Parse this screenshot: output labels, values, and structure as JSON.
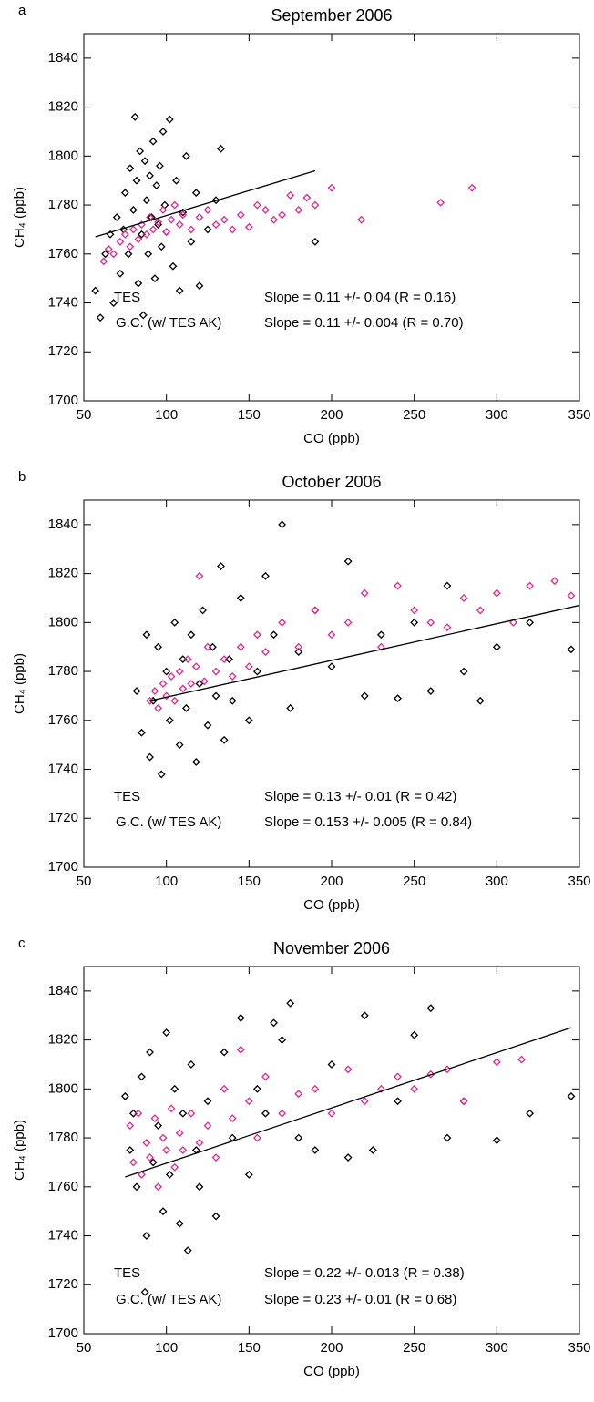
{
  "chart_data": [
    {
      "type": "scatter",
      "panel_label": "a",
      "title": "September 2006",
      "xlabel": "CO (ppb)",
      "ylabel": "CH₄ (ppb)",
      "xlim": [
        50,
        350
      ],
      "ylim": [
        1700,
        1850
      ],
      "xticks": [
        50,
        100,
        150,
        200,
        250,
        300,
        350
      ],
      "yticks": [
        1700,
        1720,
        1740,
        1760,
        1780,
        1800,
        1820,
        1840
      ],
      "series": [
        {
          "name": "TES",
          "color": "#000000",
          "annotation": "Slope = 0.11 +/- 0.04  (R = 0.16)",
          "x": [
            57,
            60,
            63,
            66,
            68,
            70,
            72,
            74,
            75,
            77,
            78,
            80,
            81,
            82,
            83,
            84,
            85,
            86,
            87,
            88,
            89,
            90,
            91,
            92,
            93,
            94,
            95,
            96,
            97,
            98,
            99,
            100,
            102,
            104,
            106,
            108,
            110,
            112,
            115,
            118,
            120,
            125,
            130,
            133,
            190
          ],
          "y": [
            1745,
            1734,
            1760,
            1768,
            1740,
            1775,
            1752,
            1770,
            1785,
            1760,
            1795,
            1778,
            1816,
            1790,
            1748,
            1802,
            1768,
            1735,
            1798,
            1782,
            1760,
            1792,
            1775,
            1806,
            1750,
            1788,
            1772,
            1796,
            1763,
            1810,
            1780,
            1769,
            1815,
            1755,
            1790,
            1745,
            1777,
            1800,
            1765,
            1785,
            1747,
            1770,
            1782,
            1803,
            1765
          ]
        },
        {
          "name": "G.C. (w/ TES AK)",
          "color": "#e8238c",
          "annotation": "Slope = 0.11 +/- 0.004  (R = 0.70)",
          "x": [
            62,
            65,
            68,
            72,
            75,
            78,
            80,
            83,
            85,
            88,
            90,
            92,
            95,
            98,
            100,
            103,
            105,
            108,
            110,
            115,
            120,
            125,
            130,
            135,
            140,
            145,
            150,
            155,
            160,
            165,
            170,
            175,
            180,
            185,
            190,
            200,
            218,
            266,
            285
          ],
          "y": [
            1757,
            1762,
            1760,
            1765,
            1768,
            1763,
            1770,
            1766,
            1772,
            1768,
            1775,
            1770,
            1773,
            1778,
            1769,
            1774,
            1780,
            1772,
            1776,
            1770,
            1775,
            1778,
            1772,
            1774,
            1770,
            1776,
            1771,
            1780,
            1778,
            1774,
            1776,
            1784,
            1778,
            1783,
            1780,
            1787,
            1774,
            1781,
            1787
          ]
        }
      ],
      "fit_line": {
        "x": [
          57,
          190
        ],
        "y": [
          1767,
          1794
        ]
      }
    },
    {
      "type": "scatter",
      "panel_label": "b",
      "title": "October 2006",
      "xlabel": "CO (ppb)",
      "ylabel": "CH₄ (ppb)",
      "xlim": [
        50,
        350
      ],
      "ylim": [
        1700,
        1850
      ],
      "xticks": [
        50,
        100,
        150,
        200,
        250,
        300,
        350
      ],
      "yticks": [
        1700,
        1720,
        1740,
        1760,
        1780,
        1800,
        1820,
        1840
      ],
      "series": [
        {
          "name": "TES",
          "color": "#000000",
          "annotation": "Slope = 0.13 +/- 0.01  (R = 0.42)",
          "x": [
            82,
            85,
            88,
            90,
            92,
            95,
            97,
            100,
            102,
            105,
            108,
            110,
            112,
            115,
            118,
            120,
            122,
            125,
            128,
            130,
            133,
            135,
            138,
            140,
            145,
            150,
            155,
            160,
            165,
            170,
            175,
            180,
            190,
            200,
            210,
            220,
            230,
            240,
            250,
            260,
            270,
            280,
            290,
            300,
            320,
            345
          ],
          "y": [
            1772,
            1755,
            1795,
            1745,
            1768,
            1790,
            1738,
            1780,
            1760,
            1800,
            1750,
            1785,
            1765,
            1795,
            1743,
            1775,
            1805,
            1758,
            1790,
            1770,
            1823,
            1752,
            1785,
            1768,
            1810,
            1760,
            1780,
            1819,
            1795,
            1840,
            1765,
            1788,
            1805,
            1782,
            1825,
            1770,
            1795,
            1769,
            1800,
            1772,
            1815,
            1780,
            1768,
            1790,
            1800,
            1789
          ]
        },
        {
          "name": "G.C. (w/ TES AK)",
          "color": "#e8238c",
          "annotation": "Slope = 0.153 +/- 0.005  (R = 0.84)",
          "x": [
            90,
            93,
            95,
            98,
            100,
            103,
            105,
            108,
            110,
            113,
            115,
            118,
            120,
            123,
            125,
            130,
            135,
            140,
            145,
            150,
            155,
            160,
            170,
            180,
            190,
            200,
            210,
            220,
            230,
            240,
            250,
            260,
            270,
            280,
            290,
            300,
            310,
            320,
            335,
            345
          ],
          "y": [
            1768,
            1772,
            1765,
            1775,
            1770,
            1778,
            1768,
            1780,
            1773,
            1785,
            1775,
            1782,
            1819,
            1776,
            1790,
            1780,
            1785,
            1778,
            1790,
            1782,
            1795,
            1788,
            1800,
            1790,
            1805,
            1795,
            1800,
            1812,
            1790,
            1815,
            1805,
            1800,
            1798,
            1810,
            1805,
            1812,
            1800,
            1815,
            1817,
            1811
          ]
        }
      ],
      "fit_line": {
        "x": [
          90,
          350
        ],
        "y": [
          1768,
          1807
        ]
      }
    },
    {
      "type": "scatter",
      "panel_label": "c",
      "title": "November 2006",
      "xlabel": "CO (ppb)",
      "ylabel": "CH₄ (ppb)",
      "xlim": [
        50,
        350
      ],
      "ylim": [
        1700,
        1850
      ],
      "xticks": [
        50,
        100,
        150,
        200,
        250,
        300,
        350
      ],
      "yticks": [
        1700,
        1720,
        1740,
        1760,
        1780,
        1800,
        1820,
        1840
      ],
      "series": [
        {
          "name": "TES",
          "color": "#000000",
          "annotation": "Slope = 0.22 +/- 0.013  (R = 0.38)",
          "x": [
            75,
            78,
            80,
            82,
            85,
            87,
            88,
            90,
            92,
            95,
            98,
            100,
            102,
            105,
            108,
            110,
            113,
            115,
            118,
            120,
            125,
            130,
            135,
            140,
            145,
            150,
            155,
            160,
            165,
            170,
            175,
            180,
            190,
            200,
            210,
            220,
            225,
            240,
            250,
            260,
            270,
            280,
            300,
            320,
            345
          ],
          "y": [
            1797,
            1775,
            1790,
            1760,
            1805,
            1717,
            1740,
            1815,
            1770,
            1785,
            1750,
            1823,
            1765,
            1800,
            1745,
            1790,
            1734,
            1810,
            1775,
            1760,
            1795,
            1748,
            1815,
            1780,
            1829,
            1765,
            1800,
            1790,
            1827,
            1820,
            1835,
            1780,
            1775,
            1810,
            1772,
            1830,
            1775,
            1795,
            1822,
            1833,
            1780,
            1795,
            1779,
            1790,
            1797
          ]
        },
        {
          "name": "G.C. (w/ TES AK)",
          "color": "#e8238c",
          "annotation": "Slope = 0.23 +/- 0.01 (R = 0.68)",
          "x": [
            78,
            80,
            83,
            85,
            88,
            90,
            93,
            95,
            98,
            100,
            103,
            105,
            108,
            110,
            115,
            120,
            125,
            130,
            135,
            140,
            145,
            150,
            155,
            160,
            170,
            180,
            190,
            200,
            210,
            220,
            230,
            240,
            250,
            260,
            270,
            280,
            300,
            315
          ],
          "y": [
            1785,
            1770,
            1790,
            1765,
            1778,
            1772,
            1788,
            1760,
            1780,
            1775,
            1792,
            1768,
            1782,
            1775,
            1790,
            1778,
            1785,
            1772,
            1800,
            1788,
            1816,
            1795,
            1780,
            1805,
            1790,
            1798,
            1800,
            1790,
            1808,
            1795,
            1800,
            1805,
            1800,
            1806,
            1808,
            1795,
            1811,
            1812
          ]
        }
      ],
      "fit_line": {
        "x": [
          75,
          345
        ],
        "y": [
          1764,
          1825
        ]
      }
    }
  ]
}
